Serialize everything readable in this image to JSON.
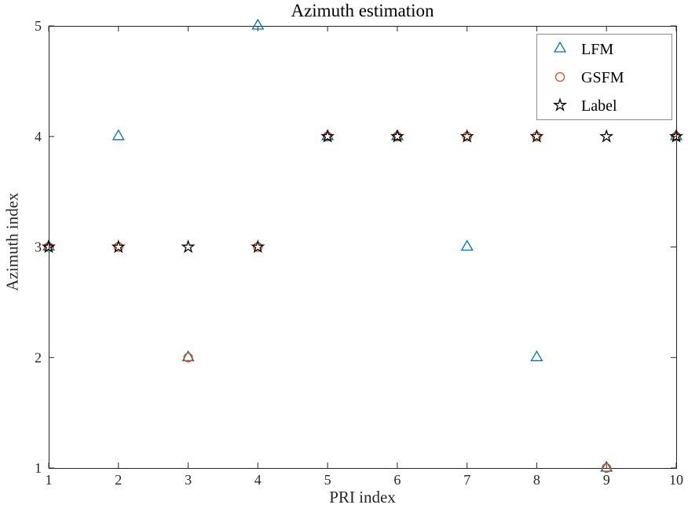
{
  "chart_data": {
    "type": "scatter",
    "title": "Azimuth estimation",
    "xlabel": "PRI index",
    "ylabel": "Azimuth index",
    "xlim": [
      1,
      10
    ],
    "ylim": [
      1,
      5
    ],
    "xticks": [
      1,
      2,
      3,
      4,
      5,
      6,
      7,
      8,
      9,
      10
    ],
    "yticks": [
      1,
      2,
      3,
      4,
      5
    ],
    "grid": false,
    "legend_position": "top-right",
    "axis_color": "#262626",
    "x": [
      1,
      2,
      3,
      4,
      5,
      6,
      7,
      8,
      9,
      10
    ],
    "series": [
      {
        "name": "LFM",
        "marker": "triangle",
        "color": "#0072BD",
        "values": [
          3,
          4,
          2,
          5,
          4,
          4,
          3,
          2,
          1,
          4
        ]
      },
      {
        "name": "GSFM",
        "marker": "circle",
        "color": "#D95319",
        "values": [
          3,
          3,
          2,
          3,
          4,
          4,
          4,
          4,
          1,
          4
        ]
      },
      {
        "name": "Label",
        "marker": "star",
        "color": "#000000",
        "values": [
          3,
          3,
          3,
          3,
          4,
          4,
          4,
          4,
          4,
          4
        ]
      }
    ]
  }
}
